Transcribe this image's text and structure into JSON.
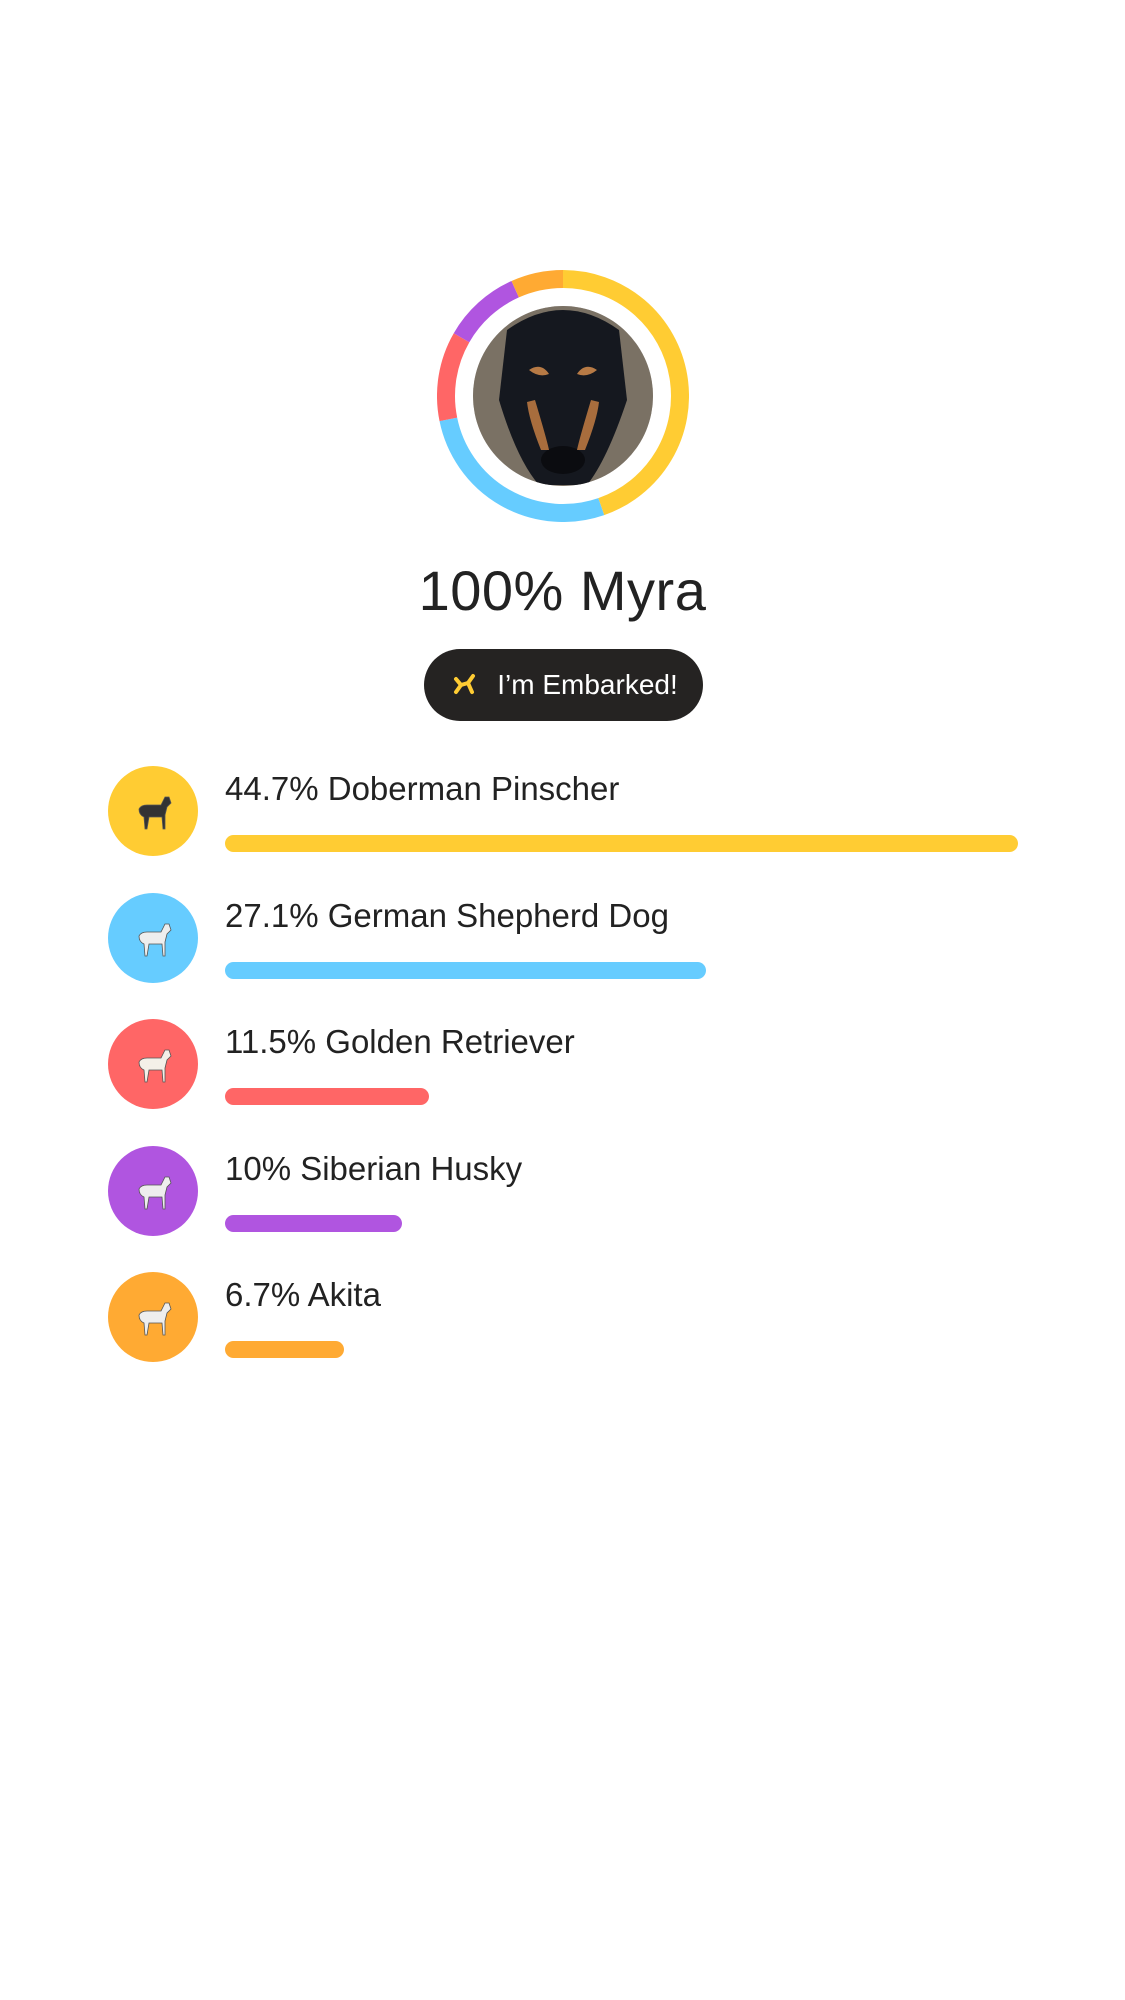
{
  "profile": {
    "title": "100% Myra",
    "badge_label": "I’m Embarked!",
    "badge_icon": "embark-logo-icon",
    "photo": "dog-photo"
  },
  "chart_data": {
    "type": "pie",
    "style": "donut",
    "categories": [
      "Doberman Pinscher",
      "German Shepherd Dog",
      "Golden Retriever",
      "Siberian Husky",
      "Akita"
    ],
    "values": [
      44.7,
      27.1,
      11.5,
      10,
      6.7
    ],
    "colors": [
      "#FFCC33",
      "#66CCFF",
      "#FF6666",
      "#B055E0",
      "#FFAA33"
    ]
  },
  "breeds": [
    {
      "label": "44.7% Doberman Pinscher",
      "percent": 44.7,
      "color": "#FFCC33",
      "icon": "doberman-icon",
      "figure": "#333"
    },
    {
      "label": "27.1% German Shepherd Dog",
      "percent": 27.1,
      "color": "#66CCFF",
      "icon": "german-shepherd-icon",
      "figure": "#eee"
    },
    {
      "label": "11.5% Golden Retriever",
      "percent": 11.5,
      "color": "#FF6666",
      "icon": "golden-retriever-icon",
      "figure": "#f4f0e8"
    },
    {
      "label": "10% Siberian Husky",
      "percent": 10,
      "color": "#B055E0",
      "icon": "siberian-husky-icon",
      "figure": "#eee"
    },
    {
      "label": "6.7% Akita",
      "percent": 6.7,
      "color": "#FFAA33",
      "icon": "akita-icon",
      "figure": "#eee"
    }
  ]
}
